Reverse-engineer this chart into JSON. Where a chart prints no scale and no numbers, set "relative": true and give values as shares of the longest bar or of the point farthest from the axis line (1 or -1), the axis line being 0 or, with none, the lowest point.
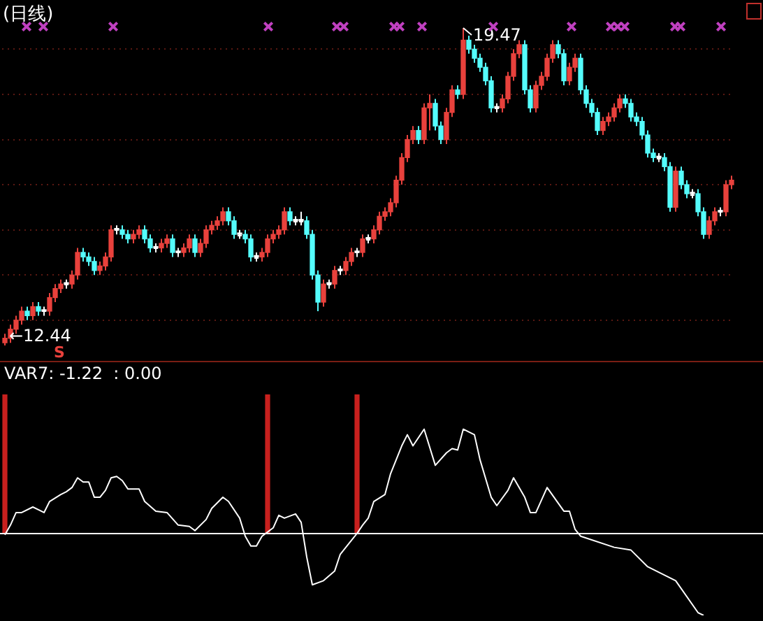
{
  "chart_data": [
    {
      "type": "candlestick",
      "title": "(日线)",
      "legend": false,
      "tick_labels": false,
      "grid": "y",
      "categories": [
        null,
        null,
        null,
        null,
        null,
        null,
        null,
        null,
        null,
        null,
        null,
        null,
        null,
        null,
        null,
        null,
        null,
        null,
        null,
        null,
        null,
        null,
        null,
        null,
        null,
        null,
        null,
        null,
        null,
        null,
        null,
        null,
        null,
        null,
        null,
        null,
        null,
        null,
        null,
        null,
        null,
        null,
        null,
        null,
        null,
        null,
        null,
        null,
        null,
        null,
        null,
        null,
        null,
        null,
        null,
        null,
        null,
        null,
        null,
        null,
        null,
        null,
        null,
        null,
        null,
        null,
        null,
        null,
        null,
        null,
        null,
        null,
        null,
        null,
        null,
        null,
        null,
        null,
        null,
        null,
        null,
        null,
        null,
        null,
        null,
        null,
        null,
        null,
        null,
        null,
        null,
        null,
        null,
        null,
        null,
        null,
        null,
        null,
        null,
        null,
        null,
        null,
        null,
        null,
        null,
        null,
        null,
        null,
        null,
        null,
        null,
        null,
        null,
        null,
        null,
        null,
        null,
        null,
        null,
        null,
        null,
        null,
        null,
        null,
        null,
        null,
        null,
        null,
        null,
        null,
        null
      ],
      "yticks": [
        {
          "value": 13,
          "label": null
        },
        {
          "value": 14,
          "label": null
        },
        {
          "value": 15,
          "label": null
        },
        {
          "value": 16,
          "label": null
        },
        {
          "value": 17,
          "label": null
        },
        {
          "value": 18,
          "label": null
        },
        {
          "value": 19,
          "label": null
        }
      ],
      "ohlc": [
        [
          12.5,
          12.7,
          12.44,
          12.6
        ],
        [
          12.6,
          12.9,
          12.5,
          12.8
        ],
        [
          12.8,
          13.1,
          12.7,
          13.0
        ],
        [
          13.0,
          13.3,
          12.9,
          13.2
        ],
        [
          13.2,
          13.3,
          13.0,
          13.1
        ],
        [
          13.1,
          13.4,
          13.0,
          13.3
        ],
        [
          13.3,
          13.4,
          13.1,
          13.2
        ],
        [
          13.2,
          13.3,
          13.1,
          13.2
        ],
        [
          13.2,
          13.6,
          13.1,
          13.5
        ],
        [
          13.5,
          13.8,
          13.4,
          13.7
        ],
        [
          13.7,
          13.9,
          13.6,
          13.8
        ],
        [
          13.8,
          13.9,
          13.7,
          13.8
        ],
        [
          13.8,
          14.1,
          13.7,
          14.0
        ],
        [
          14.0,
          14.6,
          13.9,
          14.5
        ],
        [
          14.5,
          14.6,
          14.3,
          14.4
        ],
        [
          14.4,
          14.5,
          14.2,
          14.3
        ],
        [
          14.3,
          14.4,
          14.0,
          14.1
        ],
        [
          14.1,
          14.3,
          14.0,
          14.2
        ],
        [
          14.2,
          14.5,
          14.1,
          14.4
        ],
        [
          14.4,
          15.1,
          14.3,
          15.0
        ],
        [
          15.0,
          15.1,
          14.9,
          15.0
        ],
        [
          15.0,
          15.1,
          14.8,
          14.9
        ],
        [
          14.9,
          15.0,
          14.7,
          14.8
        ],
        [
          14.8,
          15.0,
          14.7,
          14.9
        ],
        [
          14.9,
          15.1,
          14.8,
          15.0
        ],
        [
          15.0,
          15.1,
          14.7,
          14.8
        ],
        [
          14.8,
          14.9,
          14.5,
          14.6
        ],
        [
          14.6,
          14.7,
          14.5,
          14.6
        ],
        [
          14.6,
          14.8,
          14.5,
          14.7
        ],
        [
          14.7,
          14.9,
          14.6,
          14.8
        ],
        [
          14.8,
          14.9,
          14.4,
          14.5
        ],
        [
          14.5,
          14.6,
          14.4,
          14.5
        ],
        [
          14.5,
          14.7,
          14.4,
          14.6
        ],
        [
          14.6,
          14.9,
          14.5,
          14.8
        ],
        [
          14.8,
          14.9,
          14.4,
          14.5
        ],
        [
          14.5,
          14.8,
          14.4,
          14.7
        ],
        [
          14.7,
          15.1,
          14.6,
          15.0
        ],
        [
          15.0,
          15.2,
          14.9,
          15.1
        ],
        [
          15.1,
          15.3,
          15.0,
          15.2
        ],
        [
          15.2,
          15.5,
          15.1,
          15.4
        ],
        [
          15.4,
          15.5,
          15.1,
          15.2
        ],
        [
          15.2,
          15.3,
          14.8,
          14.9
        ],
        [
          14.9,
          15.0,
          14.8,
          14.9
        ],
        [
          14.9,
          15.0,
          14.7,
          14.8
        ],
        [
          14.8,
          14.9,
          14.3,
          14.4
        ],
        [
          14.4,
          14.5,
          14.3,
          14.4
        ],
        [
          14.4,
          14.6,
          14.3,
          14.5
        ],
        [
          14.5,
          14.9,
          14.4,
          14.8
        ],
        [
          14.8,
          15.0,
          14.7,
          14.9
        ],
        [
          14.9,
          15.1,
          14.8,
          15.0
        ],
        [
          15.0,
          15.5,
          14.9,
          15.4
        ],
        [
          15.4,
          15.5,
          15.1,
          15.2
        ],
        [
          15.2,
          15.3,
          15.1,
          15.2
        ],
        [
          15.2,
          15.4,
          15.1,
          15.2
        ],
        [
          15.2,
          15.3,
          14.8,
          14.9
        ],
        [
          14.9,
          15.0,
          13.9,
          14.0
        ],
        [
          14.0,
          14.1,
          13.2,
          13.4
        ],
        [
          13.4,
          13.9,
          13.3,
          13.8
        ],
        [
          13.8,
          13.9,
          13.7,
          13.8
        ],
        [
          13.8,
          14.2,
          13.7,
          14.1
        ],
        [
          14.1,
          14.2,
          14.0,
          14.1
        ],
        [
          14.1,
          14.4,
          14.0,
          14.3
        ],
        [
          14.3,
          14.6,
          14.2,
          14.5
        ],
        [
          14.5,
          14.6,
          14.4,
          14.5
        ],
        [
          14.5,
          14.9,
          14.4,
          14.8
        ],
        [
          14.8,
          14.9,
          14.7,
          14.8
        ],
        [
          14.8,
          15.1,
          14.7,
          15.0
        ],
        [
          15.0,
          15.4,
          14.9,
          15.3
        ],
        [
          15.3,
          15.5,
          15.2,
          15.4
        ],
        [
          15.4,
          15.7,
          15.3,
          15.6
        ],
        [
          15.6,
          16.2,
          15.5,
          16.1
        ],
        [
          16.1,
          16.7,
          16.0,
          16.6
        ],
        [
          16.6,
          17.1,
          16.5,
          17.0
        ],
        [
          17.0,
          17.3,
          16.9,
          17.2
        ],
        [
          17.2,
          17.3,
          16.9,
          17.0
        ],
        [
          17.0,
          17.8,
          16.9,
          17.7
        ],
        [
          17.7,
          18.0,
          17.2,
          17.8
        ],
        [
          17.8,
          17.9,
          17.2,
          17.3
        ],
        [
          17.3,
          17.4,
          16.9,
          17.0
        ],
        [
          17.0,
          17.7,
          16.9,
          17.6
        ],
        [
          17.6,
          18.2,
          17.5,
          18.1
        ],
        [
          18.1,
          18.2,
          17.9,
          18.0
        ],
        [
          18.0,
          19.47,
          17.9,
          19.2
        ],
        [
          19.2,
          19.3,
          18.9,
          19.0
        ],
        [
          19.0,
          19.1,
          18.7,
          18.8
        ],
        [
          18.8,
          18.9,
          18.5,
          18.6
        ],
        [
          18.6,
          18.7,
          18.2,
          18.3
        ],
        [
          18.3,
          18.4,
          17.6,
          17.7
        ],
        [
          17.7,
          17.8,
          17.6,
          17.7
        ],
        [
          17.7,
          18.0,
          17.6,
          17.9
        ],
        [
          17.9,
          18.5,
          17.8,
          18.4
        ],
        [
          18.4,
          19.0,
          18.3,
          18.9
        ],
        [
          18.9,
          19.2,
          18.8,
          19.1
        ],
        [
          19.1,
          19.2,
          18.0,
          18.1
        ],
        [
          18.1,
          18.2,
          17.6,
          17.7
        ],
        [
          17.7,
          18.3,
          17.6,
          18.2
        ],
        [
          18.2,
          18.5,
          18.1,
          18.4
        ],
        [
          18.4,
          18.9,
          18.3,
          18.8
        ],
        [
          18.8,
          19.2,
          18.7,
          19.1
        ],
        [
          19.1,
          19.2,
          18.8,
          18.9
        ],
        [
          18.9,
          19.0,
          18.2,
          18.3
        ],
        [
          18.3,
          18.7,
          18.2,
          18.6
        ],
        [
          18.6,
          18.9,
          18.5,
          18.8
        ],
        [
          18.8,
          18.9,
          18.0,
          18.1
        ],
        [
          18.1,
          18.2,
          17.7,
          17.8
        ],
        [
          17.8,
          17.9,
          17.5,
          17.6
        ],
        [
          17.6,
          17.7,
          17.1,
          17.2
        ],
        [
          17.2,
          17.5,
          17.1,
          17.4
        ],
        [
          17.4,
          17.6,
          17.3,
          17.5
        ],
        [
          17.5,
          17.8,
          17.4,
          17.7
        ],
        [
          17.7,
          18.0,
          17.6,
          17.9
        ],
        [
          17.9,
          18.0,
          17.7,
          17.8
        ],
        [
          17.8,
          17.9,
          17.4,
          17.5
        ],
        [
          17.5,
          17.6,
          17.3,
          17.4
        ],
        [
          17.4,
          17.5,
          17.0,
          17.1
        ],
        [
          17.1,
          17.2,
          16.6,
          16.7
        ],
        [
          16.7,
          16.8,
          16.5,
          16.6
        ],
        [
          16.6,
          16.7,
          16.5,
          16.6
        ],
        [
          16.6,
          16.7,
          16.3,
          16.4
        ],
        [
          16.4,
          16.5,
          15.4,
          15.5
        ],
        [
          15.5,
          16.4,
          15.4,
          16.3
        ],
        [
          16.3,
          16.4,
          15.9,
          16.0
        ],
        [
          16.0,
          16.1,
          15.7,
          15.8
        ],
        [
          15.8,
          15.9,
          15.7,
          15.8
        ],
        [
          15.8,
          15.9,
          15.3,
          15.4
        ],
        [
          15.4,
          15.5,
          14.8,
          14.9
        ],
        [
          14.9,
          15.3,
          14.8,
          15.2
        ],
        [
          15.2,
          15.5,
          15.1,
          15.4
        ],
        [
          15.4,
          15.5,
          15.3,
          15.4
        ],
        [
          15.4,
          16.1,
          15.3,
          16.0
        ],
        [
          16.0,
          16.2,
          15.9,
          16.1
        ]
      ],
      "colors": [
        "#e8413c",
        "#e8413c",
        "#e8413c",
        "#e8413c",
        "#54fcfc",
        "#e8413c",
        "#54fcfc",
        "#ffffff",
        "#e8413c",
        "#e8413c",
        "#e8413c",
        "#ffffff",
        "#e8413c",
        "#e8413c",
        "#54fcfc",
        "#54fcfc",
        "#54fcfc",
        "#e8413c",
        "#e8413c",
        "#e8413c",
        "#ffffff",
        "#54fcfc",
        "#54fcfc",
        "#e8413c",
        "#e8413c",
        "#54fcfc",
        "#54fcfc",
        "#ffffff",
        "#e8413c",
        "#e8413c",
        "#54fcfc",
        "#ffffff",
        "#e8413c",
        "#e8413c",
        "#54fcfc",
        "#e8413c",
        "#e8413c",
        "#e8413c",
        "#e8413c",
        "#e8413c",
        "#54fcfc",
        "#54fcfc",
        "#ffffff",
        "#54fcfc",
        "#54fcfc",
        "#ffffff",
        "#e8413c",
        "#e8413c",
        "#e8413c",
        "#e8413c",
        "#e8413c",
        "#54fcfc",
        "#ffffff",
        "#ffffff",
        "#54fcfc",
        "#54fcfc",
        "#54fcfc",
        "#e8413c",
        "#ffffff",
        "#e8413c",
        "#ffffff",
        "#e8413c",
        "#e8413c",
        "#ffffff",
        "#e8413c",
        "#ffffff",
        "#e8413c",
        "#e8413c",
        "#e8413c",
        "#e8413c",
        "#e8413c",
        "#e8413c",
        "#e8413c",
        "#e8413c",
        "#54fcfc",
        "#e8413c",
        "#e8413c",
        "#54fcfc",
        "#54fcfc",
        "#e8413c",
        "#e8413c",
        "#54fcfc",
        "#e8413c",
        "#54fcfc",
        "#54fcfc",
        "#54fcfc",
        "#54fcfc",
        "#54fcfc",
        "#ffffff",
        "#e8413c",
        "#e8413c",
        "#e8413c",
        "#e8413c",
        "#54fcfc",
        "#54fcfc",
        "#e8413c",
        "#e8413c",
        "#e8413c",
        "#e8413c",
        "#54fcfc",
        "#54fcfc",
        "#e8413c",
        "#e8413c",
        "#54fcfc",
        "#54fcfc",
        "#54fcfc",
        "#54fcfc",
        "#e8413c",
        "#e8413c",
        "#e8413c",
        "#e8413c",
        "#54fcfc",
        "#54fcfc",
        "#54fcfc",
        "#54fcfc",
        "#54fcfc",
        "#54fcfc",
        "#ffffff",
        "#54fcfc",
        "#54fcfc",
        "#e8413c",
        "#54fcfc",
        "#54fcfc",
        "#ffffff",
        "#54fcfc",
        "#54fcfc",
        "#e8413c",
        "#e8413c",
        "#ffffff",
        "#e8413c",
        "#e8413c"
      ],
      "annotations": [
        "19.47",
        "←12.44",
        "S"
      ]
    },
    {
      "type": "line",
      "relative": true,
      "legend": false,
      "tick_labels": false,
      "marker": "none",
      "categories": [
        null,
        null,
        null,
        null,
        null,
        null,
        null,
        null,
        null,
        null,
        null,
        null,
        null,
        null,
        null,
        null,
        null,
        null,
        null,
        null,
        null,
        null,
        null,
        null,
        null,
        null,
        null,
        null,
        null,
        null,
        null,
        null,
        null,
        null,
        null,
        null,
        null,
        null,
        null,
        null,
        null,
        null,
        null,
        null,
        null,
        null,
        null,
        null,
        null,
        null,
        null,
        null,
        null,
        null,
        null,
        null,
        null,
        null,
        null,
        null,
        null,
        null,
        null,
        null,
        null,
        null,
        null,
        null,
        null,
        null,
        null,
        null,
        null,
        null,
        null,
        null,
        null,
        null,
        null,
        null,
        null,
        null,
        null,
        null,
        null,
        null,
        null,
        null,
        null,
        null,
        null,
        null,
        null,
        null,
        null,
        null,
        null,
        null,
        null,
        null,
        null,
        null,
        null,
        null,
        null,
        null,
        null,
        null,
        null,
        null,
        null,
        null,
        null,
        null,
        null,
        null,
        null,
        null,
        null,
        null,
        null,
        null,
        null,
        null,
        null,
        null,
        null,
        null,
        null,
        null,
        null
      ],
      "series": [
        {
          "type": "bar",
          "color": "#c8201e",
          "values": [
            1,
            null,
            null,
            null,
            null,
            null,
            null,
            null,
            null,
            null,
            null,
            null,
            null,
            null,
            null,
            null,
            null,
            null,
            null,
            null,
            null,
            null,
            null,
            null,
            null,
            null,
            null,
            null,
            null,
            null,
            null,
            null,
            null,
            null,
            null,
            null,
            null,
            null,
            null,
            null,
            null,
            null,
            null,
            null,
            null,
            null,
            null,
            1,
            null,
            null,
            null,
            null,
            null,
            null,
            null,
            null,
            null,
            null,
            null,
            null,
            null,
            null,
            null,
            1,
            null,
            null,
            null,
            null,
            null,
            null,
            null,
            null,
            null,
            null,
            null,
            null,
            null,
            null,
            null,
            null,
            null,
            null,
            null,
            null,
            null,
            null,
            null,
            null,
            null,
            null,
            null,
            null,
            null,
            null,
            null,
            null,
            null,
            null,
            null,
            null,
            null,
            null,
            null,
            null,
            null,
            null,
            null,
            null,
            null,
            null,
            null,
            null,
            null,
            null,
            null,
            null,
            null,
            null,
            null,
            null,
            null,
            null,
            null,
            null,
            null,
            null,
            null,
            null,
            null,
            null,
            null
          ]
        },
        {
          "type": "line",
          "color": "#ffffff",
          "values": [
            -0.01,
            0.06,
            0.15,
            0.15,
            null,
            0.19,
            0.17,
            0.15,
            0.23,
            null,
            0.28,
            0.3,
            0.33,
            0.4,
            0.37,
            0.37,
            0.26,
            0.26,
            0.31,
            0.4,
            0.41,
            0.38,
            0.32,
            null,
            0.32,
            0.23,
            null,
            0.16,
            null,
            0.15,
            null,
            0.06,
            null,
            0.05,
            0.02,
            null,
            0.1,
            0.18,
            null,
            0.26,
            0.23,
            null,
            0.11,
            -0.02,
            -0.09,
            -0.09,
            -0.02,
            null,
            0.04,
            0.13,
            0.11,
            null,
            0.14,
            0.08,
            -0.17,
            -0.37,
            null,
            -0.34,
            null,
            -0.27,
            -0.15,
            null,
            -0.05,
            0,
            0.06,
            0.11,
            0.23,
            null,
            0.28,
            0.43,
            null,
            0.63,
            0.71,
            0.63,
            null,
            0.75,
            null,
            0.49,
            null,
            0.58,
            0.61,
            0.6,
            0.75,
            null,
            0.71,
            0.53,
            null,
            0.26,
            0.2,
            null,
            0.31,
            0.4,
            null,
            0.26,
            0.15,
            0.15,
            null,
            0.33,
            null,
            null,
            0.16,
            0.16,
            0.03,
            -0.02,
            null,
            null,
            null,
            null,
            null,
            -0.1,
            null,
            null,
            -0.12,
            null,
            null,
            -0.24,
            null,
            null,
            null,
            null,
            -0.34,
            null,
            null,
            null,
            -0.57,
            -0.59,
            null,
            null,
            null,
            null,
            null
          ]
        }
      ],
      "ref_lines": [
        {
          "axis": "y",
          "value": 0,
          "color": "#ffffff"
        }
      ],
      "annotations": [
        "VAR7: -1.22  : 0.00"
      ]
    }
  ]
}
